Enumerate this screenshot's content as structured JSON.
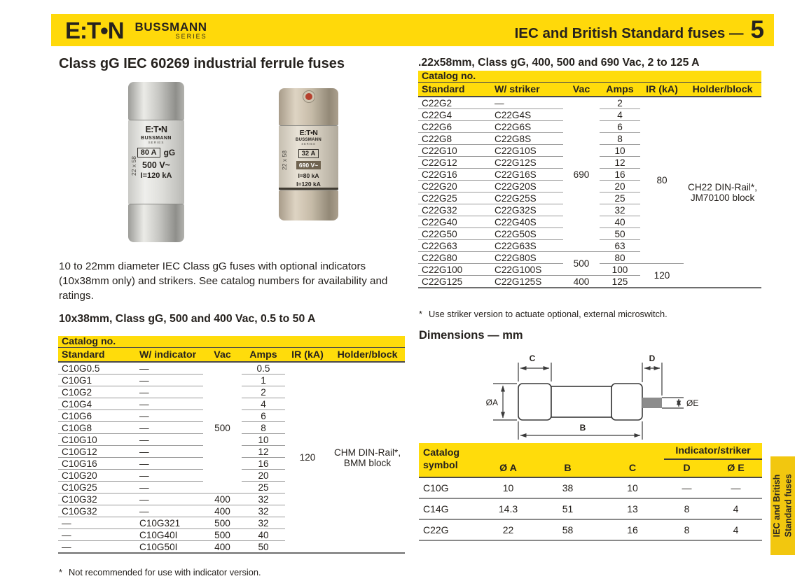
{
  "header": {
    "logo": "E:T•N",
    "brand": "BUSSMANN",
    "brand_sub": "SERIES",
    "title": "IEC and British Standard fuses —",
    "page_number": "5"
  },
  "colors": {
    "yellow": "#FFDC0B",
    "tab_yellow": "#F2C70F",
    "ink": "#26221E"
  },
  "left_column": {
    "heading": "Class gG IEC 60269 industrial ferrule fuses",
    "intro": "10 to 22mm diameter IEC Class gG fuses with optional indicators (10x38mm only) and strikers. See catalog numbers for availability and ratings.",
    "fuse_photo_1": {
      "brand": "E:T•N",
      "series": "BUSSMANN",
      "series_sub": "SERIES",
      "amps": "80 A",
      "class": "gG",
      "voltage": "500 V~",
      "rating": "I=120 kA",
      "size_label": "22 x 58"
    },
    "fuse_photo_2": {
      "brand": "E:T•N",
      "series": "BUSSMANN",
      "series_sub": "SERIES",
      "amps": "32 A",
      "voltage": "690 V~",
      "rating1": "I=80 kA",
      "rating2": "I=120 kA",
      "size_label": "22 x 58"
    },
    "table_title": "10x38mm, Class gG, 500 and 400 Vac, 0.5 to 50 A",
    "table": {
      "catalog_label": "Catalog no.",
      "columns": [
        "Standard",
        "W/ indicator",
        "Vac",
        "Amps",
        "IR (kA)",
        "Holder/block"
      ],
      "rows": [
        [
          {
            "c": 0,
            "t": "C10G0.5"
          },
          {
            "c": 1,
            "t": "—"
          },
          {
            "c": 2,
            "t": "500",
            "rs": 11
          },
          {
            "c": 3,
            "t": "0.5"
          },
          {
            "c": 4,
            "t": "120",
            "rs": 16,
            "nb": 1
          },
          {
            "c": 5,
            "t": "CHM DIN-Rail*,\nBMM block",
            "rs": 16,
            "nb": 1
          }
        ],
        [
          {
            "c": 0,
            "t": "C10G1"
          },
          {
            "c": 1,
            "t": "—"
          },
          {
            "c": 3,
            "t": "1"
          }
        ],
        [
          {
            "c": 0,
            "t": "C10G2"
          },
          {
            "c": 1,
            "t": "—"
          },
          {
            "c": 3,
            "t": "2"
          }
        ],
        [
          {
            "c": 0,
            "t": "C10G4"
          },
          {
            "c": 1,
            "t": "—"
          },
          {
            "c": 3,
            "t": "4"
          }
        ],
        [
          {
            "c": 0,
            "t": "C10G6"
          },
          {
            "c": 1,
            "t": "—"
          },
          {
            "c": 3,
            "t": "6"
          }
        ],
        [
          {
            "c": 0,
            "t": "C10G8"
          },
          {
            "c": 1,
            "t": "—"
          },
          {
            "c": 3,
            "t": "8"
          }
        ],
        [
          {
            "c": 0,
            "t": "C10G10"
          },
          {
            "c": 1,
            "t": "—"
          },
          {
            "c": 3,
            "t": "10"
          }
        ],
        [
          {
            "c": 0,
            "t": "C10G12"
          },
          {
            "c": 1,
            "t": "—"
          },
          {
            "c": 3,
            "t": "12"
          }
        ],
        [
          {
            "c": 0,
            "t": "C10G16"
          },
          {
            "c": 1,
            "t": "—"
          },
          {
            "c": 3,
            "t": "16"
          }
        ],
        [
          {
            "c": 0,
            "t": "C10G20"
          },
          {
            "c": 1,
            "t": "—"
          },
          {
            "c": 3,
            "t": "20"
          }
        ],
        [
          {
            "c": 0,
            "t": "C10G25"
          },
          {
            "c": 1,
            "t": "—"
          },
          {
            "c": 3,
            "t": "25"
          }
        ],
        [
          {
            "c": 0,
            "t": "C10G32"
          },
          {
            "c": 1,
            "t": "—"
          },
          {
            "c": 2,
            "t": "400"
          },
          {
            "c": 3,
            "t": "32"
          }
        ],
        [
          {
            "c": 0,
            "t": "C10G32"
          },
          {
            "c": 1,
            "t": "—"
          },
          {
            "c": 2,
            "t": "400"
          },
          {
            "c": 3,
            "t": "32"
          }
        ],
        [
          {
            "c": 0,
            "t": "—"
          },
          {
            "c": 1,
            "t": "C10G321"
          },
          {
            "c": 2,
            "t": "500"
          },
          {
            "c": 3,
            "t": "32"
          }
        ],
        [
          {
            "c": 0,
            "t": "—"
          },
          {
            "c": 1,
            "t": "C10G40I"
          },
          {
            "c": 2,
            "t": "500"
          },
          {
            "c": 3,
            "t": "40"
          }
        ],
        [
          {
            "c": 0,
            "t": "—",
            "nb": 1
          },
          {
            "c": 1,
            "t": "C10G50I",
            "nb": 1
          },
          {
            "c": 2,
            "t": "400",
            "nb": 1
          },
          {
            "c": 3,
            "t": "50",
            "nb": 1
          }
        ]
      ],
      "footnote_mark": "*",
      "footnote_text": "Not recommended for use with indicator version."
    }
  },
  "right_column": {
    "table_title": ".22x58mm, Class gG, 400, 500 and 690 Vac, 2 to 125 A",
    "table": {
      "catalog_label": "Catalog no.",
      "columns": [
        "Standard",
        "W/ striker",
        "Vac",
        "Amps",
        "IR (kA)",
        "Holder/block"
      ],
      "rows": [
        [
          {
            "c": 0,
            "t": "C22G2"
          },
          {
            "c": 1,
            "t": "—"
          },
          {
            "c": 2,
            "t": "690",
            "rs": 13
          },
          {
            "c": 3,
            "t": "2"
          },
          {
            "c": 4,
            "t": "80",
            "rs": 14
          },
          {
            "c": 5,
            "t": "CH22 DIN-Rail*,\nJM70100 block",
            "rs": 16,
            "nb": 1
          }
        ],
        [
          {
            "c": 0,
            "t": "C22G4"
          },
          {
            "c": 1,
            "t": "C22G4S"
          },
          {
            "c": 3,
            "t": "4"
          }
        ],
        [
          {
            "c": 0,
            "t": "C22G6"
          },
          {
            "c": 1,
            "t": "C22G6S"
          },
          {
            "c": 3,
            "t": "6"
          }
        ],
        [
          {
            "c": 0,
            "t": "C22G8"
          },
          {
            "c": 1,
            "t": "C22G8S"
          },
          {
            "c": 3,
            "t": "8"
          }
        ],
        [
          {
            "c": 0,
            "t": "C22G10"
          },
          {
            "c": 1,
            "t": "C22G10S"
          },
          {
            "c": 3,
            "t": "10"
          }
        ],
        [
          {
            "c": 0,
            "t": "C22G12"
          },
          {
            "c": 1,
            "t": "C22G12S"
          },
          {
            "c": 3,
            "t": "12"
          }
        ],
        [
          {
            "c": 0,
            "t": "C22G16"
          },
          {
            "c": 1,
            "t": "C22G16S"
          },
          {
            "c": 3,
            "t": "16"
          }
        ],
        [
          {
            "c": 0,
            "t": "C22G20"
          },
          {
            "c": 1,
            "t": "C22G20S"
          },
          {
            "c": 3,
            "t": "20"
          }
        ],
        [
          {
            "c": 0,
            "t": "C22G25"
          },
          {
            "c": 1,
            "t": "C22G25S"
          },
          {
            "c": 3,
            "t": "25"
          }
        ],
        [
          {
            "c": 0,
            "t": "C22G32"
          },
          {
            "c": 1,
            "t": "C22G32S"
          },
          {
            "c": 3,
            "t": "32"
          }
        ],
        [
          {
            "c": 0,
            "t": "C22G40"
          },
          {
            "c": 1,
            "t": "C22G40S"
          },
          {
            "c": 3,
            "t": "40"
          }
        ],
        [
          {
            "c": 0,
            "t": "C22G50"
          },
          {
            "c": 1,
            "t": "C22G50S"
          },
          {
            "c": 3,
            "t": "50"
          }
        ],
        [
          {
            "c": 0,
            "t": "C22G63"
          },
          {
            "c": 1,
            "t": "C22G63S"
          },
          {
            "c": 3,
            "t": "63"
          }
        ],
        [
          {
            "c": 0,
            "t": "C22G80"
          },
          {
            "c": 1,
            "t": "C22G80S"
          },
          {
            "c": 2,
            "t": "500",
            "rs": 2
          },
          {
            "c": 3,
            "t": "80"
          }
        ],
        [
          {
            "c": 0,
            "t": "C22G100"
          },
          {
            "c": 1,
            "t": "C22G100S"
          },
          {
            "c": 3,
            "t": "100"
          },
          {
            "c": 4,
            "t": "120",
            "rs": 2,
            "nb": 1
          }
        ],
        [
          {
            "c": 0,
            "t": "C22G125",
            "nb": 1
          },
          {
            "c": 1,
            "t": "C22G125S",
            "nb": 1
          },
          {
            "c": 2,
            "t": "400",
            "nb": 1
          },
          {
            "c": 3,
            "t": "125",
            "nb": 1
          }
        ]
      ],
      "footnote_mark": "*",
      "footnote_text": "Use striker version to actuate optional, external microswitch."
    },
    "dimensions_heading": "Dimensions — mm",
    "drawing_labels": {
      "a": "ØA",
      "b": "B",
      "c": "C",
      "d": "D",
      "e": "ØE"
    },
    "dims_table": {
      "col0": "Catalog\nsymbol",
      "group": "Indicator/striker",
      "columns": [
        "Ø A",
        "B",
        "C",
        "D",
        "Ø E"
      ],
      "rows": [
        [
          {
            "c": 0,
            "t": "C10G"
          },
          {
            "c": 1,
            "t": "10"
          },
          {
            "c": 2,
            "t": "38"
          },
          {
            "c": 3,
            "t": "10"
          },
          {
            "c": 4,
            "t": "—"
          },
          {
            "c": 5,
            "t": "—"
          }
        ],
        [
          {
            "c": 0,
            "t": "C14G"
          },
          {
            "c": 1,
            "t": "14.3"
          },
          {
            "c": 2,
            "t": "51"
          },
          {
            "c": 3,
            "t": "13"
          },
          {
            "c": 4,
            "t": "8"
          },
          {
            "c": 5,
            "t": "4"
          }
        ],
        [
          {
            "c": 0,
            "t": "C22G",
            "nb": 1
          },
          {
            "c": 1,
            "t": "22",
            "nb": 1
          },
          {
            "c": 2,
            "t": "58",
            "nb": 1
          },
          {
            "c": 3,
            "t": "16",
            "nb": 1
          },
          {
            "c": 4,
            "t": "8",
            "nb": 1
          },
          {
            "c": 5,
            "t": "4",
            "nb": 1
          }
        ]
      ]
    }
  },
  "side_tab": {
    "line1": "IEC and British",
    "line2": "Standard fuses"
  }
}
